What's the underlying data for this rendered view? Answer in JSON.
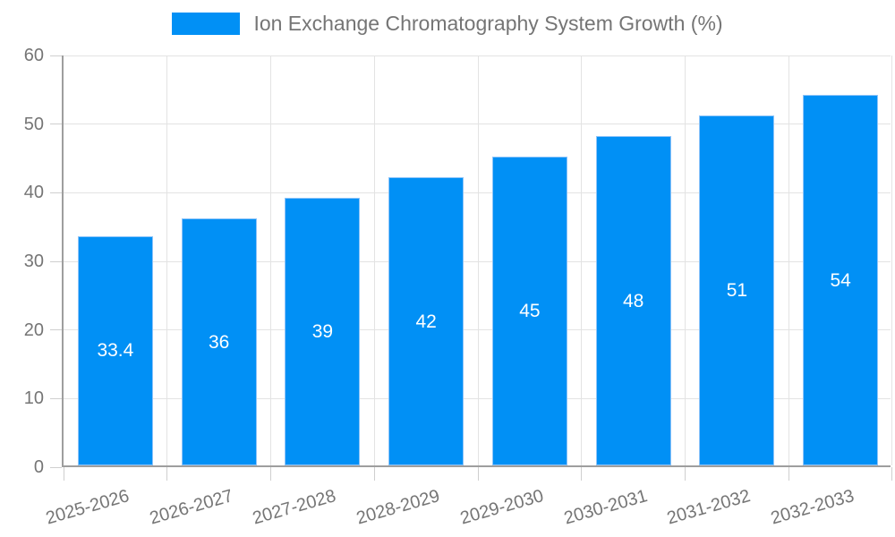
{
  "chart_data": {
    "type": "bar",
    "title": "Ion Exchange Chromatography System Growth (%)",
    "categories": [
      "2025-2026",
      "2026-2027",
      "2027-2028",
      "2028-2029",
      "2029-2030",
      "2030-2031",
      "2031-2032",
      "2032-2033"
    ],
    "values": [
      33.4,
      36,
      39,
      42,
      45,
      48,
      51,
      54
    ],
    "value_labels": [
      "33.4",
      "36",
      "39",
      "42",
      "45",
      "48",
      "51",
      "54"
    ],
    "xlabel": "",
    "ylabel": "",
    "ylim": [
      0,
      60
    ],
    "yticks": [
      0,
      10,
      20,
      30,
      40,
      50,
      60
    ],
    "grid": true,
    "legend_position": "top",
    "colors": {
      "bar": "#0190f5",
      "bar_border": "#8ec4f9",
      "bar_label": "#ffffff",
      "axis_line": "#9e9e9e",
      "grid_line": "#e3e3e3",
      "tick_mark": "#cfcfcf",
      "text": "#757575",
      "background": "#ffffff"
    }
  },
  "legend": {
    "label": "Ion Exchange Chromatography System Growth (%)"
  }
}
